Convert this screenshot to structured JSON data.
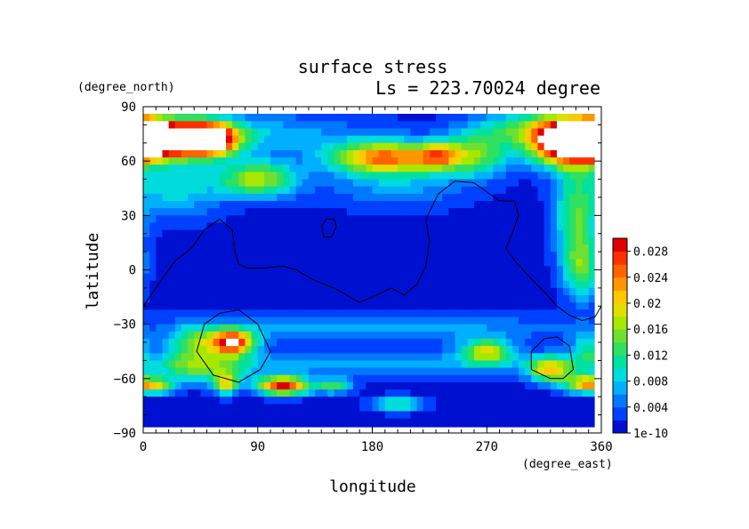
{
  "chart_data": {
    "type": "heatmap",
    "title": "surface stress",
    "subtitle": "Ls = 223.70024 degree",
    "xlabel": "longitude",
    "ylabel": "latitude",
    "x_unit": "(degree_east)",
    "y_unit": "(degree_north)",
    "xlim": [
      0,
      360
    ],
    "ylim": [
      -90,
      90
    ],
    "x_ticks": [
      "0",
      "90",
      "180",
      "270",
      "360"
    ],
    "y_ticks": [
      "90",
      "60",
      "30",
      "0",
      "−30",
      "−60",
      "−90"
    ],
    "colorbar": {
      "min": 0,
      "max": 0.03,
      "tick_labels": [
        "0.028",
        "0.024",
        "0.02",
        "0.016",
        "0.012",
        "0.008",
        "0.004",
        "1e-10"
      ],
      "tick_values": [
        0.028,
        0.024,
        0.02,
        0.016,
        0.012,
        0.008,
        0.004,
        0
      ],
      "levels": [
        {
          "from": 0.0,
          "color": "#0010d0"
        },
        {
          "from": 0.002,
          "color": "#0040ff"
        },
        {
          "from": 0.004,
          "color": "#0078ff"
        },
        {
          "from": 0.006,
          "color": "#00b0ff"
        },
        {
          "from": 0.008,
          "color": "#00dcdc"
        },
        {
          "from": 0.01,
          "color": "#00e0a0"
        },
        {
          "from": 0.012,
          "color": "#30e060"
        },
        {
          "from": 0.014,
          "color": "#70e030"
        },
        {
          "from": 0.016,
          "color": "#a8e800"
        },
        {
          "from": 0.018,
          "color": "#e0e000"
        },
        {
          "from": 0.02,
          "color": "#ffc800"
        },
        {
          "from": 0.022,
          "color": "#ff9600"
        },
        {
          "from": 0.024,
          "color": "#ff6400"
        },
        {
          "from": 0.026,
          "color": "#ff3000"
        },
        {
          "from": 0.028,
          "color": "#e00000"
        }
      ],
      "saturation_color": "#ffffff"
    },
    "field": {
      "background": 0.001,
      "features": [
        {
          "lon": 15,
          "lat": 72,
          "slon": 25,
          "slat": 7,
          "amp": 0.034
        },
        {
          "lon": 52,
          "lat": 72,
          "slon": 15,
          "slat": 6,
          "amp": 0.03
        },
        {
          "lon": 330,
          "lat": 70,
          "slon": 18,
          "slat": 9,
          "amp": 0.03
        },
        {
          "lon": 357,
          "lat": 72,
          "slon": 12,
          "slat": 8,
          "amp": 0.028
        },
        {
          "lon": 190,
          "lat": 62,
          "slon": 30,
          "slat": 6,
          "amp": 0.022
        },
        {
          "lon": 232,
          "lat": 63,
          "slon": 12,
          "slat": 5,
          "amp": 0.014
        },
        {
          "lon": 262,
          "lat": 63,
          "slon": 18,
          "slat": 8,
          "amp": 0.012
        },
        {
          "lon": 90,
          "lat": 50,
          "slon": 22,
          "slat": 7,
          "amp": 0.016
        },
        {
          "lon": 45,
          "lat": 75,
          "slon": 90,
          "slat": 8,
          "amp": 0.008
        },
        {
          "lon": 300,
          "lat": 78,
          "slon": 30,
          "slat": 7,
          "amp": 0.008
        },
        {
          "lon": 25,
          "lat": 45,
          "slon": 25,
          "slat": 12,
          "amp": 0.008
        },
        {
          "lon": 340,
          "lat": 30,
          "slon": 12,
          "slat": 20,
          "amp": 0.012
        },
        {
          "lon": 345,
          "lat": 0,
          "slon": 10,
          "slat": 12,
          "amp": 0.011
        },
        {
          "lon": 70,
          "lat": -40,
          "slon": 12,
          "slat": 5,
          "amp": 0.028
        },
        {
          "lon": 40,
          "lat": -40,
          "slon": 14,
          "slat": 6,
          "amp": 0.012
        },
        {
          "lon": 45,
          "lat": -54,
          "slon": 25,
          "slat": 6,
          "amp": 0.012
        },
        {
          "lon": 110,
          "lat": -64,
          "slon": 14,
          "slat": 3.5,
          "amp": 0.028
        },
        {
          "lon": 65,
          "lat": -63,
          "slon": 7,
          "slat": 4,
          "amp": 0.016
        },
        {
          "lon": 10,
          "lat": -64,
          "slon": 10,
          "slat": 3,
          "amp": 0.015
        },
        {
          "lon": 150,
          "lat": -64,
          "slon": 10,
          "slat": 3,
          "amp": 0.012
        },
        {
          "lon": 200,
          "lat": -74,
          "slon": 15,
          "slat": 3,
          "amp": 0.01
        },
        {
          "lon": 270,
          "lat": -45,
          "slon": 14,
          "slat": 5,
          "amp": 0.016
        },
        {
          "lon": 320,
          "lat": -55,
          "slon": 12,
          "slat": 5,
          "amp": 0.018
        },
        {
          "lon": 348,
          "lat": -63,
          "slon": 12,
          "slat": 3.5,
          "amp": 0.02
        },
        {
          "lon": 350,
          "lat": -45,
          "slon": 10,
          "slat": 7,
          "amp": 0.01
        },
        {
          "lon": 180,
          "lat": -32,
          "slon": 120,
          "slat": 6,
          "amp": 0.006
        },
        {
          "lon": 180,
          "lat": -52,
          "slon": 130,
          "slat": 5,
          "amp": 0.006
        },
        {
          "lon": 200,
          "lat": 48,
          "slon": 40,
          "slat": 10,
          "amp": 0.006
        }
      ]
    },
    "overlay_contours": [
      [
        [
          0,
          -20
        ],
        [
          15,
          -5
        ],
        [
          25,
          5
        ],
        [
          38,
          12
        ],
        [
          48,
          22
        ],
        [
          60,
          28
        ],
        [
          70,
          22
        ],
        [
          72,
          10
        ],
        [
          75,
          3
        ],
        [
          82,
          1
        ],
        [
          95,
          1
        ],
        [
          110,
          2
        ],
        [
          120,
          0
        ],
        [
          135,
          -6
        ],
        [
          150,
          -10
        ],
        [
          170,
          -18
        ],
        [
          180,
          -15
        ],
        [
          195,
          -10
        ],
        [
          205,
          -14
        ],
        [
          215,
          -8
        ],
        [
          222,
          2
        ],
        [
          225,
          15
        ],
        [
          222,
          28
        ],
        [
          232,
          42
        ],
        [
          245,
          49
        ],
        [
          260,
          48
        ],
        [
          272,
          42
        ],
        [
          280,
          38
        ],
        [
          292,
          38
        ],
        [
          295,
          30
        ],
        [
          290,
          20
        ],
        [
          285,
          12
        ],
        [
          292,
          5
        ],
        [
          305,
          -5
        ],
        [
          315,
          -12
        ],
        [
          325,
          -20
        ],
        [
          335,
          -25
        ],
        [
          345,
          -28
        ],
        [
          355,
          -26
        ],
        [
          360,
          -20
        ]
      ],
      [
        [
          142,
          18
        ],
        [
          148,
          18
        ],
        [
          152,
          24
        ],
        [
          150,
          28
        ],
        [
          144,
          28
        ],
        [
          140,
          24
        ],
        [
          142,
          18
        ]
      ],
      [
        [
          75,
          -22
        ],
        [
          90,
          -30
        ],
        [
          100,
          -45
        ],
        [
          92,
          -55
        ],
        [
          75,
          -62
        ],
        [
          55,
          -58
        ],
        [
          42,
          -45
        ],
        [
          48,
          -30
        ],
        [
          60,
          -24
        ],
        [
          75,
          -22
        ]
      ],
      [
        [
          325,
          -37
        ],
        [
          335,
          -42
        ],
        [
          338,
          -55
        ],
        [
          330,
          -60
        ],
        [
          320,
          -60
        ],
        [
          305,
          -55
        ],
        [
          305,
          -45
        ],
        [
          315,
          -38
        ],
        [
          325,
          -37
        ]
      ]
    ]
  }
}
